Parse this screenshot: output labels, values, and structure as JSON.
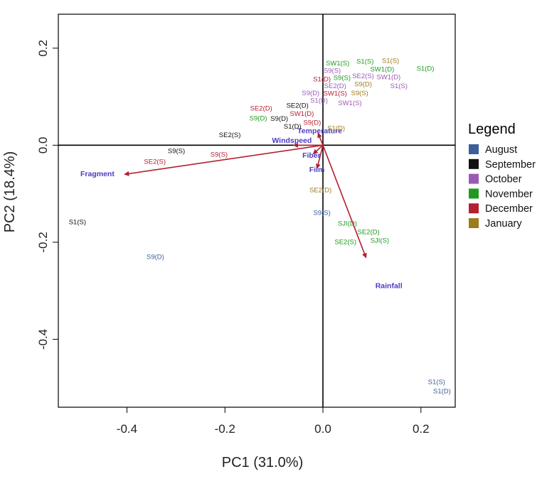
{
  "chart_data": {
    "type": "scatter",
    "subtype": "pca-biplot",
    "xlabel": "PC1 (31.0%)",
    "ylabel": "PC2 (18.4%)",
    "xlim": [
      -0.54,
      0.27
    ],
    "ylim": [
      -0.54,
      0.27
    ],
    "x_ticks": [
      {
        "value": -0.4,
        "label": "-0.4"
      },
      {
        "value": -0.2,
        "label": "-0.2"
      },
      {
        "value": 0.0,
        "label": "0.0"
      },
      {
        "value": 0.2,
        "label": "0.2"
      }
    ],
    "y_ticks": [
      {
        "value": 0.2,
        "label": "0.2"
      },
      {
        "value": 0.0,
        "label": "0.0"
      },
      {
        "value": -0.2,
        "label": "-0.2"
      },
      {
        "value": -0.4,
        "label": "-0.4"
      }
    ],
    "legend": {
      "title": "Legend",
      "position": "right",
      "items": [
        {
          "name": "August",
          "color": "#3b5f9a"
        },
        {
          "name": "September",
          "color": "#111111"
        },
        {
          "name": "October",
          "color": "#9b59b6"
        },
        {
          "name": "November",
          "color": "#1f9a1f"
        },
        {
          "name": "December",
          "color": "#b3202f"
        },
        {
          "name": "January",
          "color": "#9c7c1c"
        }
      ]
    },
    "arrow_color": "#b3202f",
    "loadings": [
      {
        "name": "Fragment",
        "x": -0.405,
        "y": -0.06,
        "lx": -0.495,
        "ly": -0.064
      },
      {
        "name": "Rainfall",
        "x": 0.088,
        "y": -0.232,
        "lx": 0.107,
        "ly": -0.295
      },
      {
        "name": "Temperature",
        "x": -0.01,
        "y": 0.025,
        "lx": -0.052,
        "ly": 0.025
      },
      {
        "name": "Windspeed",
        "x": -0.06,
        "y": 0.0,
        "lx": -0.104,
        "ly": 0.005
      },
      {
        "name": "Fiber",
        "x": -0.02,
        "y": -0.018,
        "lx": -0.042,
        "ly": -0.026
      },
      {
        "name": "Film",
        "x": -0.012,
        "y": -0.048,
        "lx": -0.028,
        "ly": -0.055
      }
    ],
    "points": [
      {
        "label": "S1(S)",
        "month": "August",
        "x": 0.232,
        "y": -0.489
      },
      {
        "label": "S1(D)",
        "month": "August",
        "x": 0.243,
        "y": -0.508
      },
      {
        "label": "S9(S)",
        "month": "August",
        "x": -0.002,
        "y": -0.14
      },
      {
        "label": "S9(D)",
        "month": "August",
        "x": -0.342,
        "y": -0.231
      },
      {
        "label": "S1(S)",
        "month": "September",
        "x": -0.501,
        "y": -0.159
      },
      {
        "label": "SE2(S)",
        "month": "September",
        "x": -0.19,
        "y": 0.02
      },
      {
        "label": "S9(S)",
        "month": "September",
        "x": -0.299,
        "y": -0.013
      },
      {
        "label": "S9(D)",
        "month": "September",
        "x": -0.089,
        "y": 0.054
      },
      {
        "label": "S1(D)",
        "month": "September",
        "x": -0.062,
        "y": 0.038
      },
      {
        "label": "SE2(D)",
        "month": "September",
        "x": -0.052,
        "y": 0.081
      },
      {
        "label": "S9(D)",
        "month": "October",
        "x": -0.025,
        "y": 0.107
      },
      {
        "label": "S1(D)",
        "month": "October",
        "x": -0.008,
        "y": 0.091
      },
      {
        "label": "S9(S)",
        "month": "October",
        "x": 0.019,
        "y": 0.153
      },
      {
        "label": "SE2(D)",
        "month": "October",
        "x": 0.025,
        "y": 0.121
      },
      {
        "label": "SE2(S)",
        "month": "October",
        "x": 0.082,
        "y": 0.142
      },
      {
        "label": "SW1(D)",
        "month": "October",
        "x": 0.134,
        "y": 0.14
      },
      {
        "label": "S1(S)",
        "month": "October",
        "x": 0.155,
        "y": 0.121
      },
      {
        "label": "SW1(S)",
        "month": "October",
        "x": 0.055,
        "y": 0.086
      },
      {
        "label": "S9(D)",
        "month": "November",
        "x": -0.132,
        "y": 0.055
      },
      {
        "label": "SW1(S)",
        "month": "November",
        "x": 0.03,
        "y": 0.168
      },
      {
        "label": "S1(S)",
        "month": "November",
        "x": 0.086,
        "y": 0.172
      },
      {
        "label": "SW1(D)",
        "month": "November",
        "x": 0.121,
        "y": 0.156
      },
      {
        "label": "S9(S)",
        "month": "November",
        "x": 0.039,
        "y": 0.138
      },
      {
        "label": "S1(D)",
        "month": "November",
        "x": 0.209,
        "y": 0.157
      },
      {
        "label": "SJI(D)",
        "month": "November",
        "x": 0.05,
        "y": -0.162
      },
      {
        "label": "SE2(D)",
        "month": "November",
        "x": 0.093,
        "y": -0.18
      },
      {
        "label": "SJI(S)",
        "month": "November",
        "x": 0.116,
        "y": -0.197
      },
      {
        "label": "SE2(S)",
        "month": "November",
        "x": 0.046,
        "y": -0.2
      },
      {
        "label": "SE2(D)",
        "month": "December",
        "x": -0.126,
        "y": 0.075
      },
      {
        "label": "SW1(D)",
        "month": "December",
        "x": -0.043,
        "y": 0.064
      },
      {
        "label": "S9(D)",
        "month": "December",
        "x": -0.022,
        "y": 0.046
      },
      {
        "label": "S9(S)",
        "month": "December",
        "x": -0.212,
        "y": -0.02
      },
      {
        "label": "SE2(S)",
        "month": "December",
        "x": -0.343,
        "y": -0.035
      },
      {
        "label": "S1(D)",
        "month": "December",
        "x": -0.002,
        "y": 0.135
      },
      {
        "label": "SW1(S)",
        "month": "December",
        "x": 0.025,
        "y": 0.106
      },
      {
        "label": "S1(S)",
        "month": "January",
        "x": 0.138,
        "y": 0.173
      },
      {
        "label": "S9(D)",
        "month": "January",
        "x": 0.082,
        "y": 0.125
      },
      {
        "label": "S9(S)",
        "month": "January",
        "x": 0.075,
        "y": 0.107
      },
      {
        "label": "S1(D)",
        "month": "January",
        "x": 0.027,
        "y": 0.034
      },
      {
        "label": "SE2(D)",
        "month": "January",
        "x": -0.005,
        "y": -0.093
      }
    ]
  }
}
